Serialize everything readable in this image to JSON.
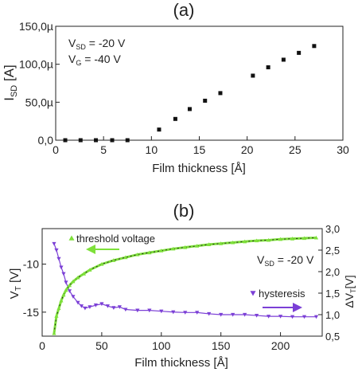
{
  "chart_data": [
    {
      "type": "scatter",
      "panel_label": "(a)",
      "xlabel": "Film thickness [Å]",
      "ylabel": "I_SD [A]",
      "ylabel_main": "I",
      "ylabel_sub": "SD",
      "ylabel_unit": " [A]",
      "xlim": [
        0,
        30
      ],
      "ylim": [
        0,
        150
      ],
      "xticks": [
        0,
        5,
        10,
        15,
        20,
        25,
        30
      ],
      "xtick_labels": [
        "0",
        "5",
        "10",
        "15",
        "20",
        "25",
        "30"
      ],
      "yticks": [
        0,
        50,
        100,
        150
      ],
      "ytick_labels": [
        "0,0",
        "50,0µ",
        "100,0µ",
        "150,0µ"
      ],
      "annotations": [
        {
          "main": "V",
          "sub": "SD",
          "rest": " = -20 V"
        },
        {
          "main": "V",
          "sub": "G",
          "rest": " = -40 V"
        }
      ],
      "marker_color": "#111111",
      "series": [
        {
          "x": [
            1.0,
            2.6,
            4.2,
            5.9,
            7.5,
            10.8,
            12.5,
            14.0,
            15.6,
            17.2,
            20.6,
            22.2,
            23.8,
            25.4,
            27.0
          ],
          "y": [
            0,
            0,
            0,
            0,
            0,
            14,
            28,
            41,
            52,
            62,
            85,
            96,
            106,
            115,
            124
          ]
        }
      ]
    },
    {
      "type": "line",
      "panel_label": "(b)",
      "xlabel": "Film thickness [Å]",
      "xlim": [
        0,
        235
      ],
      "xticks": [
        0,
        50,
        100,
        150,
        200
      ],
      "xtick_labels": [
        "0",
        "50",
        "100",
        "150",
        "200"
      ],
      "ylabel_left_main": "V",
      "ylabel_left_sub": "T",
      "ylabel_left_unit": " [V]",
      "ylim_left": [
        -17.5,
        -6.3
      ],
      "yticks_left": [
        -15,
        -10
      ],
      "ytick_labels_left": [
        "-15",
        "-10"
      ],
      "ylabel_right_main": "ΔV",
      "ylabel_right_sub": "T",
      "ylabel_right_unit": "[V]",
      "ylim_right": [
        0.5,
        3.0
      ],
      "yticks_right": [
        0.5,
        1.0,
        1.5,
        2.0,
        2.5,
        3.0
      ],
      "ytick_labels_right": [
        "0,5",
        "1,0",
        "1,5",
        "2,0",
        "2,5",
        "3,0"
      ],
      "annotation": {
        "main": "V",
        "sub": "SD",
        "rest": " = -20 V"
      },
      "fit_color": "#222222",
      "series": [
        {
          "name": "threshold voltage",
          "axis": "left",
          "color": "#7ee03a",
          "marker": "triangle-up",
          "arrow": "left",
          "x": [
            10,
            12,
            14,
            16,
            18,
            20,
            23,
            26,
            30,
            35,
            40,
            50,
            60,
            70,
            80,
            90,
            100,
            110,
            120,
            130,
            140,
            150,
            160,
            170,
            180,
            190,
            200,
            210,
            220,
            230
          ],
          "y": [
            -17.2,
            -15.4,
            -14.6,
            -13.8,
            -13.2,
            -12.7,
            -12.2,
            -11.8,
            -11.4,
            -11.0,
            -10.6,
            -10.0,
            -9.6,
            -9.3,
            -9.0,
            -8.8,
            -8.6,
            -8.4,
            -8.25,
            -8.1,
            -7.95,
            -7.85,
            -7.75,
            -7.65,
            -7.55,
            -7.5,
            -7.4,
            -7.35,
            -7.3,
            -7.25
          ]
        },
        {
          "name": "hysteresis",
          "axis": "right",
          "color": "#7b3fd6",
          "marker": "triangle-down",
          "arrow": "right",
          "x": [
            10,
            12,
            14,
            16,
            18,
            20,
            23,
            26,
            30,
            33,
            36,
            40,
            45,
            50,
            55,
            60,
            65,
            70,
            80,
            90,
            100,
            110,
            120,
            130,
            140,
            150,
            160,
            170,
            180,
            190,
            200,
            210,
            220,
            230
          ],
          "y": [
            2.65,
            2.5,
            2.3,
            2.1,
            1.95,
            1.75,
            1.55,
            1.42,
            1.28,
            1.2,
            1.15,
            1.18,
            1.22,
            1.25,
            1.2,
            1.16,
            1.18,
            1.12,
            1.1,
            1.1,
            1.08,
            1.06,
            1.05,
            1.05,
            1.02,
            1.0,
            1.0,
            1.0,
            0.98,
            0.96,
            0.96,
            0.95,
            0.95,
            0.95
          ]
        }
      ]
    }
  ]
}
